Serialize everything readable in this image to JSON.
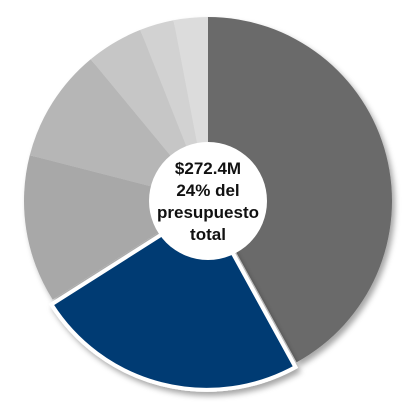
{
  "chart_data": {
    "type": "pie",
    "style": "donut",
    "title": "",
    "highlighted_slice": 1,
    "slices": [
      {
        "value": 42,
        "color": "#6a6a6a"
      },
      {
        "value": 24,
        "color": "#003a73"
      },
      {
        "value": 13,
        "color": "#a8a8a8"
      },
      {
        "value": 10,
        "color": "#b6b6b6"
      },
      {
        "value": 5,
        "color": "#c6c6c6"
      },
      {
        "value": 3,
        "color": "#d2d2d2"
      },
      {
        "value": 3,
        "color": "#dcdcdc"
      }
    ],
    "center_label": {
      "line1": "$272.4M",
      "line2": "24% del",
      "line3": "presupuesto",
      "line4": "total"
    }
  }
}
